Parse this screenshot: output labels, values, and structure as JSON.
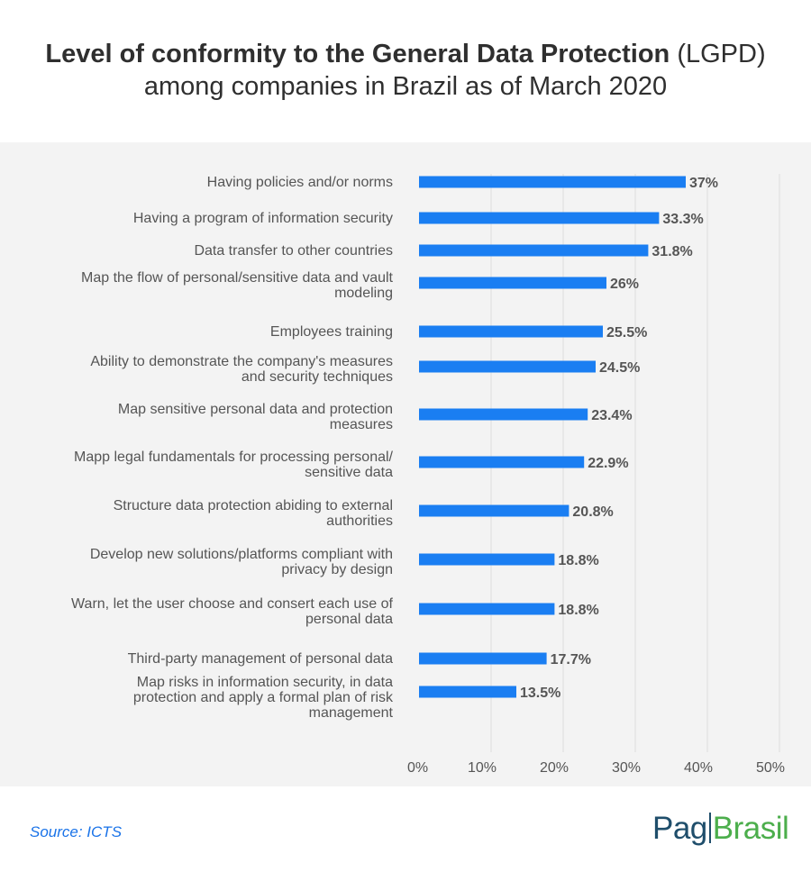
{
  "title": {
    "bold": "Level of conformity to the General Data Protection",
    "normal": "(LGPD)",
    "line2": "among companies in Brazil as of March 2020"
  },
  "source": "Source: ICTS",
  "logo": {
    "part1": "Pag",
    "part2": "Brasil"
  },
  "colors": {
    "bar": "#1a7ef2",
    "panel": "#f3f3f3",
    "grid": "#dedede",
    "label": "#555555",
    "value": "#555555",
    "source": "#1a73e8"
  },
  "chart_data": {
    "type": "bar",
    "orientation": "horizontal",
    "categories": [
      "Having policies and/or norms",
      "Having a program of information security",
      "Data transfer to other countries",
      "Map the flow of personal/sensitive data and vault modeling",
      "Employees training",
      "Ability to demonstrate the company's measures and security techniques",
      "Map sensitive personal data and protection measures",
      "Mapp legal fundamentals for processing personal/ sensitive data",
      "Structure data protection abiding to external authorities",
      "Develop new solutions/platforms compliant with privacy by design",
      "Warn, let the user choose and consert each use of personal data",
      "Third-party management of personal data",
      "Map risks in information  security, in data protection and apply a formal plan of risk management"
    ],
    "category_lines": [
      [
        "Having policies and/or norms"
      ],
      [
        "Having a program of information security"
      ],
      [
        "Data transfer to other countries"
      ],
      [
        "Map the flow of personal/sensitive data and vault",
        "modeling"
      ],
      [
        "Employees training"
      ],
      [
        "Ability to demonstrate the company's measures",
        "and security techniques"
      ],
      [
        "Map sensitive personal data and protection",
        "measures"
      ],
      [
        "Mapp legal fundamentals for processing personal/",
        "sensitive data"
      ],
      [
        "Structure data protection abiding to external",
        "authorities"
      ],
      [
        "Develop new solutions/platforms compliant with",
        "privacy by design"
      ],
      [
        "Warn, let the user choose and consert each use of",
        "personal data"
      ],
      [
        "Third-party management of personal data"
      ],
      [
        "Map risks in information  security, in data",
        "protection and apply a formal plan of risk",
        "management"
      ]
    ],
    "values": [
      37,
      33.3,
      31.8,
      26,
      25.5,
      24.5,
      23.4,
      22.9,
      20.8,
      18.8,
      18.8,
      17.7,
      13.5
    ],
    "value_labels": [
      "37%",
      "33.3%",
      "31.8%",
      "26%",
      "25.5%",
      "24.5%",
      "23.4%",
      "22.9%",
      "20.8%",
      "18.8%",
      "18.8%",
      "17.7%",
      "13.5%"
    ],
    "x_ticks": [
      0,
      10,
      20,
      30,
      40,
      50
    ],
    "x_tick_labels": [
      "0%",
      "10%",
      "20%",
      "30%",
      "40%",
      "50%"
    ],
    "xlim": [
      0,
      50
    ],
    "grid": true,
    "title": "Level of conformity to the General Data Protection (LGPD) among companies in Brazil as of March 2020"
  }
}
